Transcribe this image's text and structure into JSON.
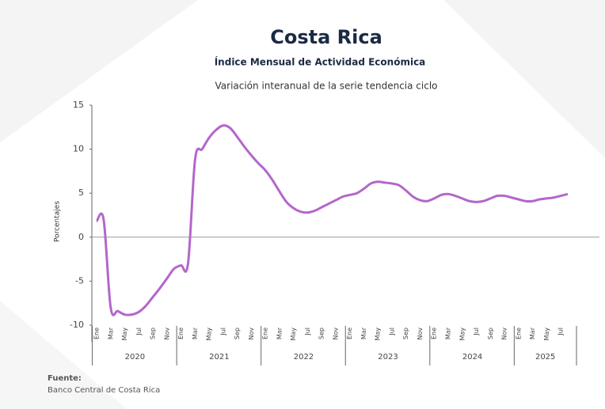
{
  "chart_data": {
    "type": "line",
    "title": "Costa Rica",
    "subtitle": "Índice Mensual de Actividad Económica",
    "description": "Variación interanual de la serie tendencia ciclo",
    "y_label": "Porcentajes",
    "source_title": "Fuente:",
    "source": "Banco Central de Costa Rica",
    "categories": [
      "Ene",
      null,
      "Mar",
      null,
      "May",
      null,
      "Jul",
      null,
      "Sep",
      null,
      "Nov",
      null,
      "Ene",
      null,
      "Mar",
      null,
      "May",
      null,
      "Jul",
      null,
      "Sep",
      null,
      "Nov",
      null,
      "Ene",
      null,
      "Mar",
      null,
      "May",
      null,
      "Jul",
      null,
      "Sep",
      null,
      "Nov",
      null,
      "Ene",
      null,
      "Mar",
      null,
      "May",
      null,
      "Jul",
      null,
      "Sep",
      null,
      "Nov",
      null,
      "Ene",
      null,
      "Mar",
      null,
      "May",
      null,
      "Jul",
      null,
      "Sep",
      null,
      "Nov",
      null,
      "Ene",
      null,
      "Mar",
      null,
      "May",
      null,
      "Jul",
      null
    ],
    "year_groups": [
      "2020",
      "2021",
      "2022",
      "2023",
      "2024",
      "2025"
    ],
    "color": "#b466cc",
    "values": [
      1.8,
      2.0,
      -8.0,
      -8.4,
      -8.8,
      -8.8,
      -8.5,
      -7.8,
      -6.8,
      -5.8,
      -4.7,
      -3.6,
      -3.2,
      -3.0,
      8.8,
      10.0,
      11.3,
      12.2,
      12.7,
      12.4,
      11.4,
      10.3,
      9.3,
      8.4,
      7.6,
      6.5,
      5.2,
      4.0,
      3.3,
      2.9,
      2.8,
      3.0,
      3.4,
      3.8,
      4.2,
      4.6,
      4.8,
      5.0,
      5.5,
      6.1,
      6.3,
      6.2,
      6.1,
      5.9,
      5.3,
      4.6,
      4.2,
      4.1,
      4.4,
      4.8,
      4.9,
      4.7,
      4.4,
      4.1,
      4.0,
      4.1,
      4.4,
      4.7,
      4.7,
      4.5,
      4.3,
      4.1,
      4.1,
      4.3,
      4.4,
      4.5,
      4.7,
      4.9
    ],
    "ylim": [
      -10,
      15
    ],
    "yticks": [
      -10,
      -5,
      0,
      5,
      10,
      15
    ],
    "zero_line": true
  }
}
